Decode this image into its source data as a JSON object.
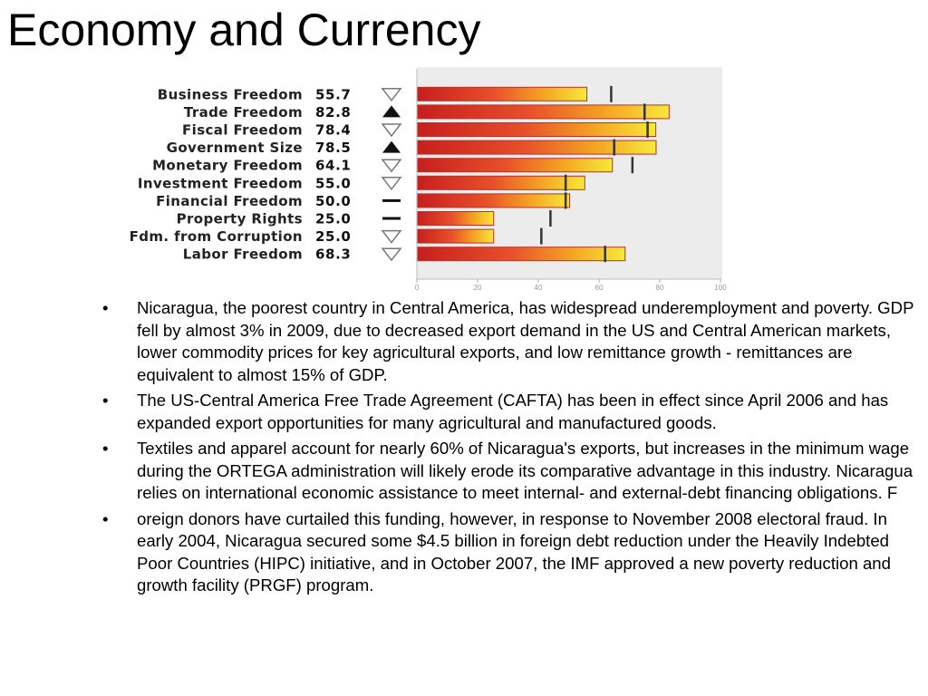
{
  "title": "Economy and Currency",
  "chart_data": {
    "type": "bar",
    "categories": [
      "Business Freedom",
      "Trade Freedom",
      "Fiscal Freedom",
      "Government Size",
      "Monetary Freedom",
      "Investment Freedom",
      "Financial Freedom",
      "Property Rights",
      "Fdm. from Corruption",
      "Labor Freedom"
    ],
    "values": [
      55.7,
      82.8,
      78.4,
      78.5,
      64.1,
      55.0,
      50.0,
      25.0,
      25.0,
      68.3
    ],
    "value_labels": [
      "55.7",
      "82.8",
      "78.4",
      "78.5",
      "64.1",
      "55.0",
      "50.0",
      "25.0",
      "25.0",
      "68.3"
    ],
    "markers": [
      64,
      75,
      76,
      65,
      71,
      49,
      49,
      44,
      41,
      62
    ],
    "trends": [
      "down",
      "up",
      "down",
      "up",
      "down",
      "down",
      "flat",
      "flat",
      "down",
      "down"
    ],
    "xlim": [
      0,
      100
    ],
    "xticks": [
      "0",
      "20",
      "40",
      "60",
      "80",
      "100"
    ],
    "grid": false,
    "colors": {
      "bar_start": "#c81e1e",
      "bar_end": "#f7e83a",
      "plot_bg": "#ececec"
    }
  },
  "bullets": [
    "Nicaragua, the poorest country in Central America, has widespread underemployment and poverty. GDP fell by almost 3% in 2009, due to decreased export demand in the US and Central American markets, lower commodity prices for key agricultural exports, and low remittance growth - remittances are equivalent to almost 15% of GDP.",
    "The US-Central America Free Trade Agreement (CAFTA) has been in effect since April 2006 and has expanded export opportunities for many agricultural and manufactured goods.",
    "Textiles and apparel account for nearly 60% of Nicaragua's exports, but increases in the minimum wage during the ORTEGA administration will likely erode its comparative advantage in this industry. Nicaragua relies on international economic assistance to meet internal- and external-debt financing obligations. F",
    "oreign donors have curtailed this funding, however, in response to November 2008 electoral fraud. In early 2004, Nicaragua secured some $4.5 billion in foreign debt reduction under the Heavily Indebted Poor Countries (HIPC) initiative, and in October 2007, the IMF approved a new poverty reduction and growth facility (PRGF) program."
  ],
  "bullet_symbol": "•"
}
